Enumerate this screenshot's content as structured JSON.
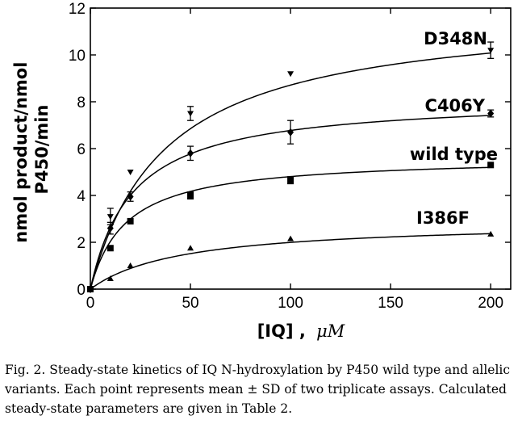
{
  "chart_data": {
    "type": "scatter",
    "xlabel_main": "[IQ] ,",
    "xlabel_unit": "μM",
    "ylabel_line1": "nmol product/nmol",
    "ylabel_line2": "P450/min",
    "xlim": [
      0,
      210
    ],
    "ylim": [
      0,
      12
    ],
    "xticks": [
      0,
      50,
      100,
      150,
      200
    ],
    "yticks": [
      0,
      2,
      4,
      6,
      8,
      10,
      12
    ],
    "grid": false,
    "series": [
      {
        "name": "D348N",
        "marker": "triangle-down",
        "x": [
          0,
          10,
          20,
          50,
          100,
          200
        ],
        "y": [
          0,
          3.1,
          5.0,
          7.5,
          9.2,
          10.2
        ],
        "error": [
          0,
          0.35,
          0,
          0.3,
          0,
          0.35
        ],
        "fit_vmax": 11.96,
        "fit_km": 37.3
      },
      {
        "name": "C406Y",
        "marker": "diamond",
        "x": [
          0,
          10,
          20,
          50,
          100,
          200
        ],
        "y": [
          0,
          2.6,
          3.95,
          5.8,
          6.7,
          7.5
        ],
        "error": [
          0,
          0.25,
          0.2,
          0.3,
          0.5,
          0.15
        ],
        "fit_vmax": 8.19,
        "fit_km": 20.9
      },
      {
        "name": "wild type",
        "marker": "square",
        "x": [
          0,
          10,
          20,
          50,
          100,
          200
        ],
        "y": [
          0,
          1.75,
          2.9,
          4.0,
          4.65,
          5.3
        ],
        "error": [
          0,
          0,
          0,
          0.15,
          0.15,
          0
        ],
        "fit_vmax": 5.66,
        "fit_km": 17.8
      },
      {
        "name": "I386F",
        "marker": "triangle-up",
        "x": [
          0,
          10,
          20,
          50,
          100,
          200
        ],
        "y": [
          0,
          0.45,
          1.0,
          1.75,
          2.15,
          2.35
        ],
        "error": [
          0,
          0,
          0,
          0,
          0,
          0
        ],
        "fit_vmax": 2.91,
        "fit_km": 45.9
      }
    ]
  },
  "caption": "Fig. 2. Steady-state kinetics of IQ N-hydroxylation by P450 wild type and allelic variants. Each point represents mean ± SD of two triplicate assays. Calculated steady-state parameters are given in Table 2."
}
